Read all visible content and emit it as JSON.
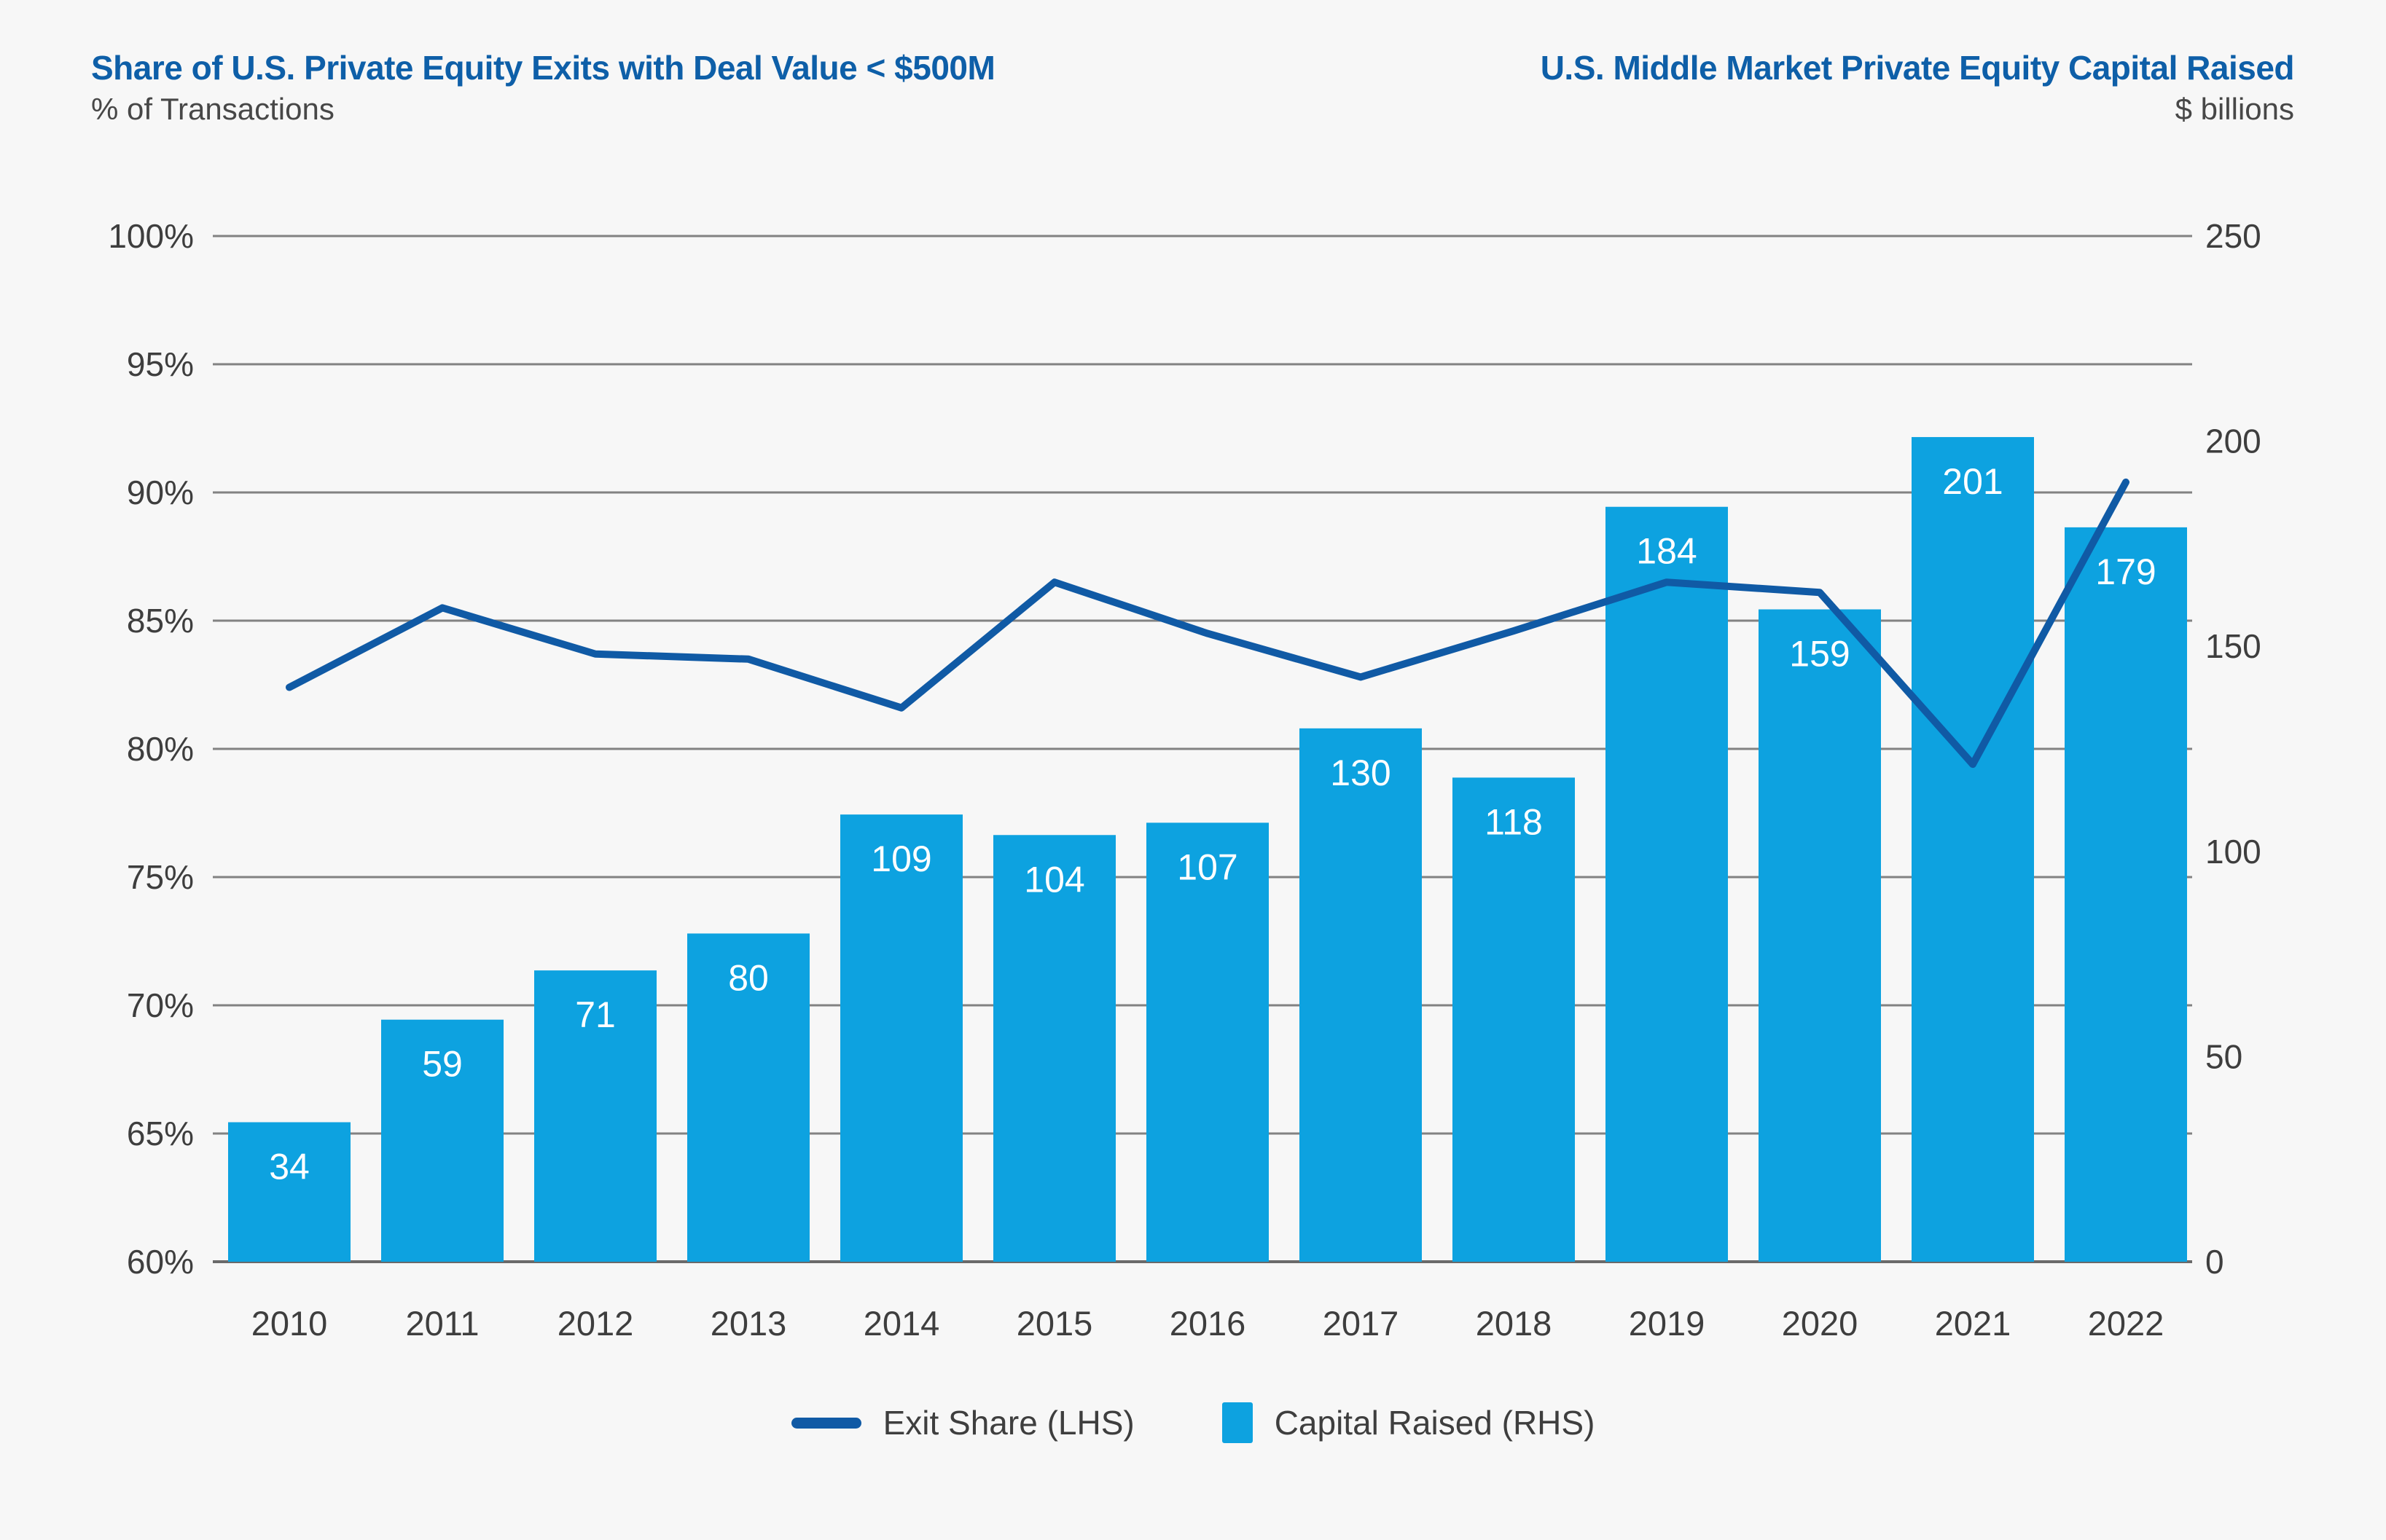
{
  "page": {
    "background": "#f7f7f7"
  },
  "left_header": {
    "title": "Share of U.S. Private Equity Exits with Deal Value < $500M",
    "subtitle": "% of Transactions"
  },
  "right_header": {
    "title": "U.S. Middle Market Private Equity Capital Raised",
    "subtitle": "$ billions"
  },
  "legend": {
    "items": [
      {
        "label": "Exit Share (LHS)",
        "swatch": "line",
        "color": "#105aa5"
      },
      {
        "label": "Capital Raised (RHS)",
        "swatch": "square",
        "color": "#0da2e0"
      }
    ]
  },
  "colors": {
    "title_blue": "#0e5fa8",
    "line_blue": "#105aa5",
    "bar_blue": "#0da2e0",
    "axis_text": "#3e3e3e",
    "gridline": "#828282",
    "baseline": "#6a6a6a",
    "bar_label_text": "#ffffff",
    "background": "#f7f7f7"
  },
  "chart_data": {
    "type": "bar",
    "subtype": "dual-axis bar + line combo",
    "categories": [
      "2010",
      "2011",
      "2012",
      "2013",
      "2014",
      "2015",
      "2016",
      "2017",
      "2018",
      "2019",
      "2020",
      "2021",
      "2022"
    ],
    "series": [
      {
        "name": "Exit Share (LHS)",
        "type": "line",
        "axis": "left",
        "unit": "% of transactions",
        "color": "#105aa5",
        "values": [
          82.4,
          85.5,
          83.7,
          83.5,
          81.6,
          86.5,
          84.5,
          82.8,
          84.6,
          86.5,
          86.1,
          79.4,
          90.4
        ]
      },
      {
        "name": "Capital Raised (RHS)",
        "type": "bar",
        "axis": "right",
        "unit": "$ billions",
        "color": "#0da2e0",
        "values": [
          34,
          59,
          71,
          80,
          109,
          104,
          107,
          130,
          118,
          184,
          159,
          201,
          179
        ],
        "data_labels": [
          "34",
          "59",
          "71",
          "80",
          "109",
          "104",
          "107",
          "130",
          "118",
          "184",
          "159",
          "201",
          "179"
        ]
      }
    ],
    "left_axis": {
      "title": "% of Transactions",
      "min": 60,
      "max": 100,
      "tick_step": 5,
      "tick_labels": [
        "100%",
        "95%",
        "90%",
        "85%",
        "80%",
        "75%",
        "70%",
        "65%",
        "60%"
      ]
    },
    "right_axis": {
      "title": "$ billions",
      "min": 0,
      "max": 250,
      "tick_step": 50,
      "tick_labels": [
        "250",
        "200",
        "150",
        "100",
        "50",
        "0"
      ]
    },
    "grid": "horizontal gridlines at every 5% (left axis)",
    "legend_position": "bottom-center",
    "bar_label_style": "white, inside top of bar",
    "title": "Share of U.S. Private Equity Exits with Deal Value < $500M / U.S. Middle Market Private Equity Capital Raised"
  }
}
